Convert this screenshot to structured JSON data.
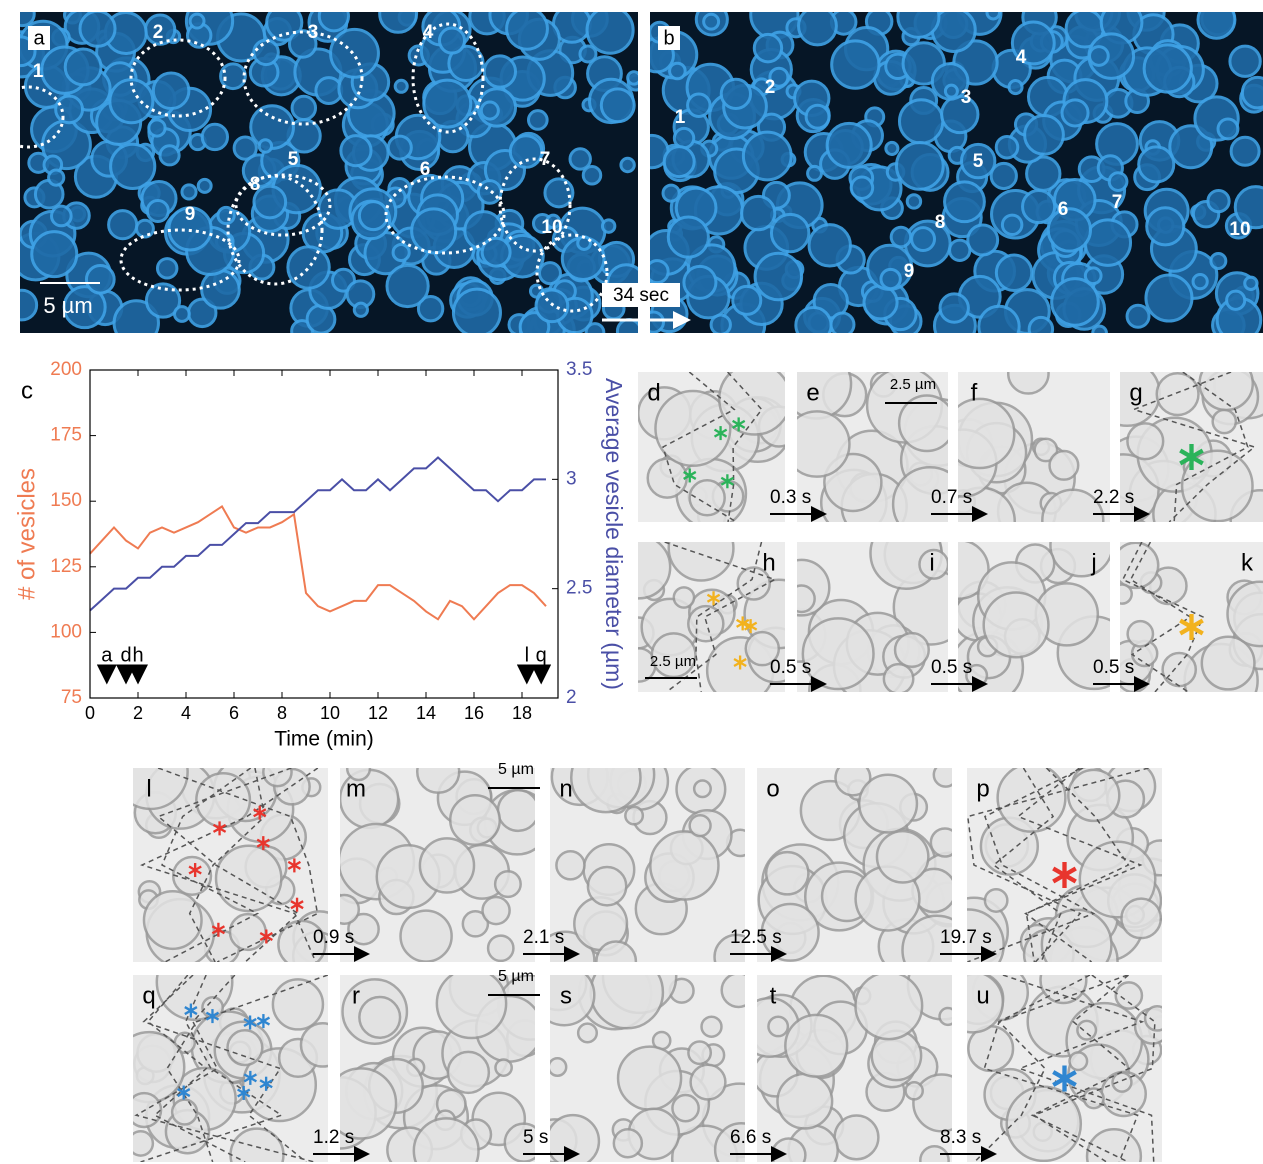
{
  "chart_data": {
    "type": "line",
    "label": "c",
    "xlabel": "Time (min)",
    "ylabel": "# of vesicles",
    "y2label": "Average vesicle diameter (µm)",
    "x": [
      0,
      0.5,
      1,
      1.5,
      2,
      2.5,
      3,
      3.5,
      4,
      4.5,
      5,
      5.5,
      6,
      6.5,
      7,
      7.5,
      8,
      8.5,
      9,
      9.5,
      10,
      10.5,
      11,
      11.5,
      12,
      12.5,
      13,
      13.5,
      14,
      14.5,
      15,
      15.5,
      16,
      16.5,
      17,
      17.5,
      18,
      18.5,
      19
    ],
    "series": [
      {
        "color": "#ef7b52",
        "values": [
          130,
          135,
          140,
          135,
          132,
          138,
          140,
          138,
          140,
          142,
          145,
          148,
          140,
          138,
          140,
          140,
          142,
          145,
          115,
          110,
          108,
          110,
          112,
          112,
          118,
          118,
          115,
          112,
          108,
          105,
          112,
          110,
          105,
          110,
          115,
          118,
          118,
          115,
          110
        ]
      },
      {
        "color": "#4a4fa6",
        "axis": "y2",
        "values": [
          2.4,
          2.45,
          2.5,
          2.5,
          2.55,
          2.55,
          2.6,
          2.6,
          2.65,
          2.65,
          2.7,
          2.7,
          2.75,
          2.8,
          2.8,
          2.85,
          2.85,
          2.85,
          2.9,
          2.95,
          2.95,
          3.0,
          2.95,
          2.95,
          3.0,
          2.95,
          3.0,
          3.05,
          3.05,
          3.1,
          3.05,
          3.0,
          2.95,
          2.95,
          2.9,
          2.95,
          2.95,
          3.0,
          3.0
        ]
      }
    ],
    "xlim": [
      0,
      19.5
    ],
    "xticks": [
      0,
      2,
      4,
      6,
      8,
      10,
      12,
      14,
      16,
      18
    ],
    "ylim": [
      75,
      200
    ],
    "yticks": [
      75,
      100,
      125,
      150,
      175,
      200
    ],
    "y2lim": [
      2,
      3.5
    ],
    "y2ticks": [
      2,
      2.5,
      3,
      3.5
    ],
    "events": [
      {
        "label": "a",
        "x": 0.7
      },
      {
        "label": "d",
        "x": 1.5
      },
      {
        "label": "h",
        "x": 2.0
      },
      {
        "label": "l",
        "x": 18.2
      },
      {
        "label": "q",
        "x": 18.8
      }
    ]
  },
  "top_panels": {
    "a": {
      "label": "a",
      "numbers": [
        "1",
        "2",
        "3",
        "4",
        "5",
        "6",
        "7",
        "8",
        "9",
        "10"
      ],
      "scale_bar": "5 µm"
    },
    "b": {
      "label": "b",
      "numbers": [
        "1",
        "2",
        "3",
        "4",
        "5",
        "6",
        "7",
        "8",
        "9",
        "10"
      ]
    },
    "interval": "34 sec"
  },
  "rows": [
    {
      "labels": [
        "d",
        "e",
        "f",
        "g"
      ],
      "intervals": [
        "0.3 s",
        "0.7 s",
        "2.2 s"
      ],
      "scale_bar": "2.5 µm"
    },
    {
      "labels": [
        "h",
        "i",
        "j",
        "k"
      ],
      "intervals": [
        "0.5 s",
        "0.5 s",
        "0.5 s"
      ],
      "scale_bar": "2.5 µm"
    },
    {
      "labels": [
        "l",
        "m",
        "n",
        "o",
        "p"
      ],
      "intervals": [
        "0.9 s",
        "2.1 s",
        "12.5 s",
        "19.7 s"
      ],
      "scale_bar": "5 µm"
    },
    {
      "labels": [
        "q",
        "r",
        "s",
        "t",
        "u"
      ],
      "intervals": [
        "1.2 s",
        "5 s",
        "6.6 s",
        "8.3 s"
      ],
      "scale_bar": "5 µm"
    }
  ]
}
